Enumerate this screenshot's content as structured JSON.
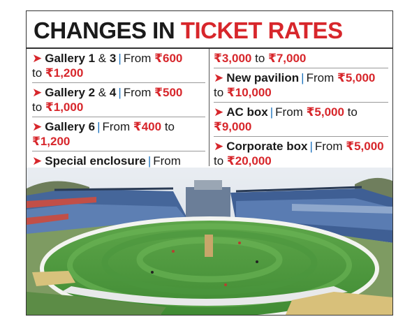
{
  "title": {
    "part1": "CHANGES IN",
    "part2": "TICKET RATES"
  },
  "left_items": [
    {
      "name_a": "Gallery 1",
      "name_b": " & ",
      "name_c": "3",
      "from": "From ",
      "val1": "₹600",
      "to": "to ",
      "val2": "₹1,200"
    },
    {
      "name_a": "Gallery 2",
      "name_b": " & ",
      "name_c": "4",
      "from": "From ",
      "val1": "₹500",
      "to": "to ",
      "val2": "₹1,000"
    },
    {
      "name_a": "Gallery 6",
      "from": "From ",
      "val1": "₹400",
      "to": "to ",
      "val2": "₹1,200"
    },
    {
      "name_a": "Special enclosure",
      "from": "From"
    }
  ],
  "right_items": [
    {
      "cont1": "₹3,000",
      "to": " to ",
      "cont2": "₹7,000"
    },
    {
      "name_a": "New pavilion",
      "from": "From ",
      "val1": "₹5,000",
      "to": "to ",
      "val2": "₹10,000"
    },
    {
      "name_a": "AC box",
      "from": "From ",
      "val1": "₹5,000",
      "to": " to",
      "val2": "₹9,000"
    },
    {
      "name_a": "Corporate box",
      "from": "From ",
      "val1": "₹5,000",
      "to": "to ",
      "val2": "₹20,000"
    }
  ],
  "icons": {
    "bullet": "arrow-bullet-icon"
  },
  "colors": {
    "accent": "#d7262b",
    "pipe": "#1e73be",
    "grass": "#4f9a3a"
  }
}
